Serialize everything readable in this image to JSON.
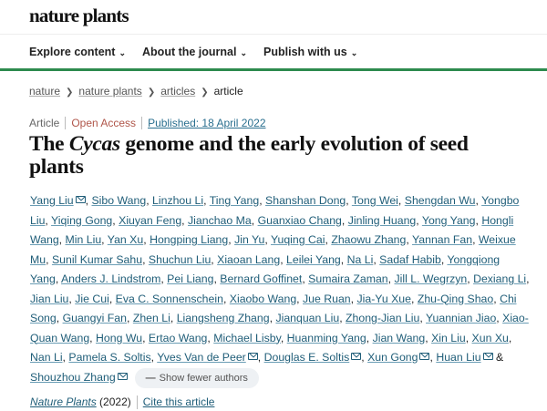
{
  "header": {
    "logo": "nature plants"
  },
  "nav": [
    {
      "label": "Explore content"
    },
    {
      "label": "About the journal"
    },
    {
      "label": "Publish with us"
    }
  ],
  "breadcrumb": [
    "nature",
    "nature plants",
    "articles",
    "article"
  ],
  "article": {
    "type": "Article",
    "access": "Open Access",
    "published": "Published: 18 April 2022",
    "title_before": "The ",
    "title_italic": "Cycas",
    "title_after": " genome and the early evolution of seed plants",
    "show_fewer_label": "Show fewer authors",
    "and_separator": "&",
    "journal": "Nature Plants",
    "year": "(2022)",
    "cite_label": "Cite this article"
  },
  "colors": {
    "accent_green": "#2d8a4e",
    "link": "#1f5d78",
    "open_access": "#b0564a"
  },
  "authors": [
    {
      "name": "Yang Liu",
      "mail": true
    },
    {
      "name": "Sibo Wang"
    },
    {
      "name": "Linzhou Li"
    },
    {
      "name": "Ting Yang"
    },
    {
      "name": "Shanshan Dong"
    },
    {
      "name": "Tong Wei"
    },
    {
      "name": "Shengdan Wu"
    },
    {
      "name": "Yongbo Liu"
    },
    {
      "name": "Yiqing Gong"
    },
    {
      "name": "Xiuyan Feng"
    },
    {
      "name": "Jianchao Ma"
    },
    {
      "name": "Guanxiao Chang"
    },
    {
      "name": "Jinling Huang"
    },
    {
      "name": "Yong Yang"
    },
    {
      "name": "Hongli Wang"
    },
    {
      "name": "Min Liu"
    },
    {
      "name": "Yan Xu"
    },
    {
      "name": "Hongping Liang"
    },
    {
      "name": "Jin Yu"
    },
    {
      "name": "Yuqing Cai"
    },
    {
      "name": "Zhaowu Zhang"
    },
    {
      "name": "Yannan Fan"
    },
    {
      "name": "Weixue Mu"
    },
    {
      "name": "Sunil Kumar Sahu"
    },
    {
      "name": "Shuchun Liu"
    },
    {
      "name": "Xiaoan Lang"
    },
    {
      "name": "Leilei Yang"
    },
    {
      "name": "Na Li"
    },
    {
      "name": "Sadaf Habib"
    },
    {
      "name": "Yongqiong Yang"
    },
    {
      "name": "Anders J. Lindstrom"
    },
    {
      "name": "Pei Liang"
    },
    {
      "name": "Bernard Goffinet"
    },
    {
      "name": "Sumaira Zaman"
    },
    {
      "name": "Jill L. Wegrzyn"
    },
    {
      "name": "Dexiang Li"
    },
    {
      "name": "Jian Liu"
    },
    {
      "name": "Jie Cui"
    },
    {
      "name": "Eva C. Sonnenschein"
    },
    {
      "name": "Xiaobo Wang"
    },
    {
      "name": "Jue Ruan"
    },
    {
      "name": "Jia-Yu Xue"
    },
    {
      "name": "Zhu-Qing Shao"
    },
    {
      "name": "Chi Song"
    },
    {
      "name": "Guangyi Fan"
    },
    {
      "name": "Zhen Li"
    },
    {
      "name": "Liangsheng Zhang"
    },
    {
      "name": "Jianquan Liu"
    },
    {
      "name": "Zhong-Jian Liu"
    },
    {
      "name": "Yuannian Jiao"
    },
    {
      "name": "Xiao-Quan Wang"
    },
    {
      "name": "Hong Wu"
    },
    {
      "name": "Ertao Wang"
    },
    {
      "name": "Michael Lisby"
    },
    {
      "name": "Huanming Yang"
    },
    {
      "name": "Jian Wang"
    },
    {
      "name": "Xin Liu"
    },
    {
      "name": "Xun Xu"
    },
    {
      "name": "Nan Li"
    },
    {
      "name": "Pamela S. Soltis"
    },
    {
      "name": "Yves Van de Peer",
      "mail": true
    },
    {
      "name": "Douglas E. Soltis",
      "mail": true
    },
    {
      "name": "Xun Gong",
      "mail": true
    },
    {
      "name": "Huan Liu",
      "mail": true
    },
    {
      "name": "Shouzhou Zhang",
      "mail": true
    }
  ]
}
